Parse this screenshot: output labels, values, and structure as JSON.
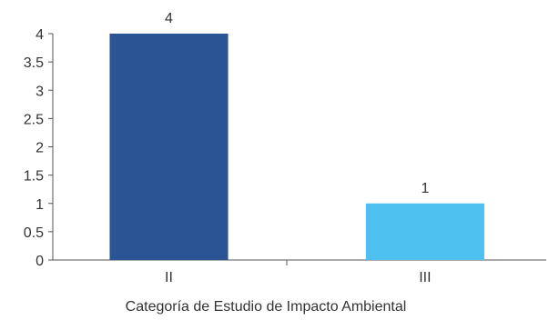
{
  "chart_data": {
    "type": "bar",
    "categories": [
      "II",
      "III"
    ],
    "values": [
      4,
      1
    ],
    "bar_colors": [
      "#2b5494",
      "#4ec1f1"
    ],
    "data_labels": [
      "4",
      "1"
    ],
    "title": "",
    "xlabel": "Categoría de Estudio de Impacto Ambiental",
    "ylabel": "",
    "ylim": [
      0,
      4
    ],
    "yticks": [
      "0",
      "0.5",
      "1",
      "1.5",
      "2",
      "2.5",
      "3",
      "3.5",
      "4"
    ],
    "grid": false,
    "legend": "none"
  }
}
